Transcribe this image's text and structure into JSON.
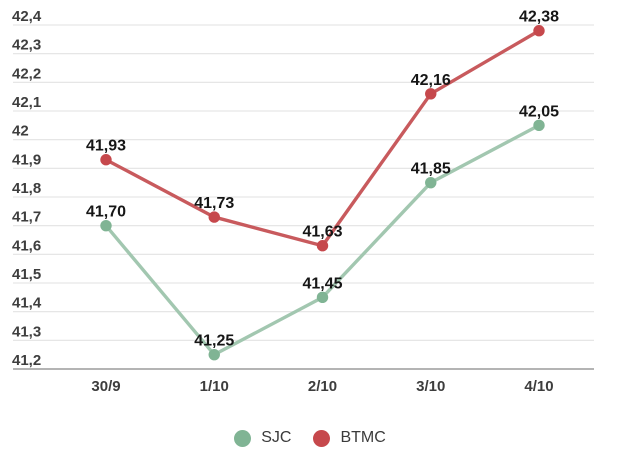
{
  "chart_data": {
    "type": "line",
    "title": "",
    "xlabel": "",
    "ylabel": "",
    "x": [
      "30/9",
      "1/10",
      "2/10",
      "3/10",
      "4/10"
    ],
    "series": [
      {
        "name": "SJC",
        "values": [
          41.7,
          41.25,
          41.45,
          41.85,
          42.05
        ],
        "labels": [
          "41,70",
          "41,25",
          "41,45",
          "41,85",
          "42,05"
        ],
        "line_color": "#a2c7b0",
        "marker_color": "#80b494"
      },
      {
        "name": "BTMC",
        "values": [
          41.93,
          41.73,
          41.63,
          42.16,
          42.38
        ],
        "labels": [
          "41,93",
          "41,73",
          "41,63",
          "42,16",
          "42,38"
        ],
        "line_color": "#c85a5d",
        "marker_color": "#c6484c"
      }
    ],
    "y_ticks": [
      {
        "label": "42,4",
        "value": 42.4
      },
      {
        "label": "42,3",
        "value": 42.3
      },
      {
        "label": "42,2",
        "value": 42.2
      },
      {
        "label": "42,1",
        "value": 42.1
      },
      {
        "label": "42",
        "value": 42.0
      },
      {
        "label": "41,9",
        "value": 41.9
      },
      {
        "label": "41,8",
        "value": 41.8
      },
      {
        "label": "41,7",
        "value": 41.7
      },
      {
        "label": "41,6",
        "value": 41.6
      },
      {
        "label": "41,5",
        "value": 41.5
      },
      {
        "label": "41,4",
        "value": 41.4
      },
      {
        "label": "41,3",
        "value": 41.3
      },
      {
        "label": "41,2",
        "value": 41.2
      }
    ],
    "ylim": [
      41.2,
      42.4
    ],
    "grid": true,
    "legend_position": "bottom",
    "colors": {
      "grid_line": "#e2e2e2",
      "axis_line": "#9b9b9b",
      "tick_text": "#3e3e3e",
      "data_label_text": "#161616"
    }
  }
}
